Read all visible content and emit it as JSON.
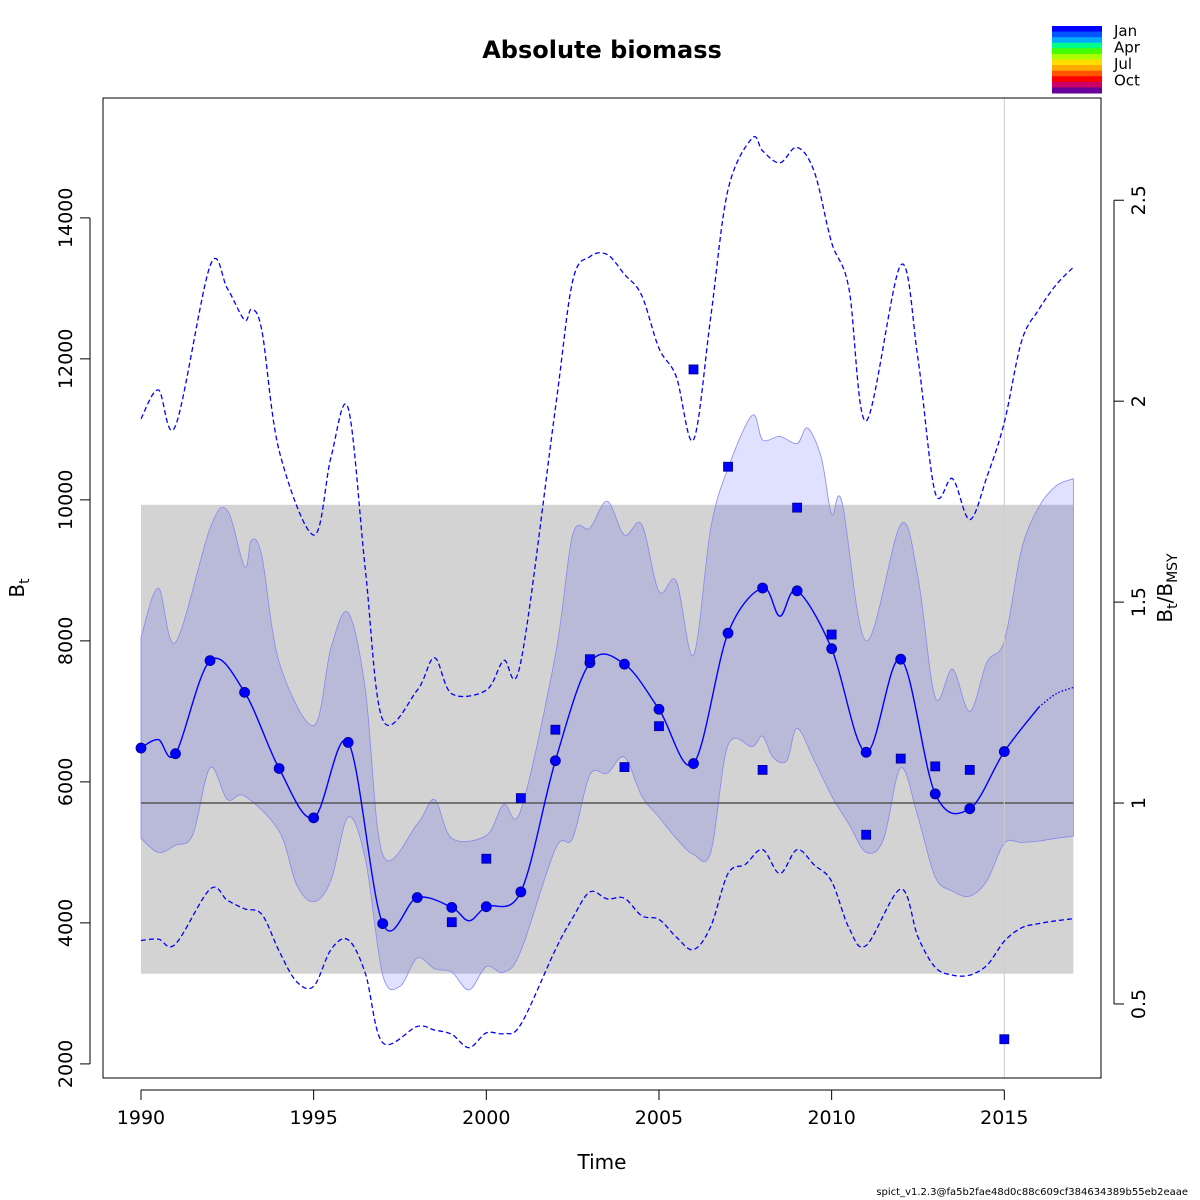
{
  "chart_data": {
    "type": "line",
    "title": "Absolute biomass",
    "xlabel": "Time",
    "ylabel_main": "B",
    "ylabel_sub": "t",
    "y2label": {
      "b": "B",
      "t": "t",
      "slash": "/B",
      "msy": "MSY"
    },
    "xlim": [
      1988.9,
      2017.8
    ],
    "ylim": [
      1800,
      15700
    ],
    "y2_scale_bmsy": 5700,
    "x_ticks": [
      1990,
      1995,
      2000,
      2005,
      2010,
      2015
    ],
    "y_ticks": [
      2000,
      4000,
      6000,
      8000,
      10000,
      12000,
      14000
    ],
    "y2_ticks": [
      0.5,
      1,
      1.5,
      2,
      2.5
    ],
    "y2_tick_labels": [
      "0.5",
      "1",
      "1.5",
      "2",
      "2.5"
    ],
    "bmsy_line": 5700,
    "bmsy_ci": [
      3280,
      9930
    ],
    "ci_range_x": [
      1990,
      2017
    ],
    "estimate": [
      [
        1990,
        6480
      ],
      [
        1990.5,
        6600
      ],
      [
        1991,
        6400
      ],
      [
        1992,
        7720
      ],
      [
        1993,
        7270
      ],
      [
        1994,
        6190
      ],
      [
        1995,
        5490
      ],
      [
        1996,
        6560
      ],
      [
        1997,
        3990
      ],
      [
        1998,
        4360
      ],
      [
        1999,
        4220
      ],
      [
        1999.5,
        4030
      ],
      [
        2000,
        4230
      ],
      [
        2001,
        4440
      ],
      [
        2002,
        6300
      ],
      [
        2003,
        7690
      ],
      [
        2004,
        7670
      ],
      [
        2005,
        7030
      ],
      [
        2006,
        6260
      ],
      [
        2007,
        8110
      ],
      [
        2008,
        8750
      ],
      [
        2008.5,
        8350
      ],
      [
        2009,
        8710
      ],
      [
        2010,
        7890
      ],
      [
        2011,
        6420
      ],
      [
        2012,
        7740
      ],
      [
        2013,
        5830
      ],
      [
        2014,
        5620
      ],
      [
        2015,
        6430
      ],
      [
        2016,
        7060
      ]
    ],
    "forecast": [
      [
        2016,
        7060
      ],
      [
        2016.5,
        7250
      ],
      [
        2017,
        7340
      ]
    ],
    "estimate_points": [
      [
        1990,
        6480
      ],
      [
        1991,
        6400
      ],
      [
        1992,
        7720
      ],
      [
        1993,
        7270
      ],
      [
        1994,
        6190
      ],
      [
        1995,
        5490
      ],
      [
        1996,
        6560
      ],
      [
        1997,
        3990
      ],
      [
        1998,
        4360
      ],
      [
        1999,
        4220
      ],
      [
        2000,
        4230
      ],
      [
        2001,
        4440
      ],
      [
        2002,
        6300
      ],
      [
        2003,
        7690
      ],
      [
        2004,
        7670
      ],
      [
        2005,
        7030
      ],
      [
        2006,
        6260
      ],
      [
        2007,
        8110
      ],
      [
        2008,
        8750
      ],
      [
        2009,
        8710
      ],
      [
        2010,
        7890
      ],
      [
        2011,
        6420
      ],
      [
        2012,
        7740
      ],
      [
        2013,
        5830
      ],
      [
        2014,
        5620
      ],
      [
        2015,
        6430
      ]
    ],
    "observations": [
      [
        2002,
        6740
      ],
      [
        2003,
        7740
      ],
      [
        2004,
        6210
      ],
      [
        2005,
        6790
      ],
      [
        2006,
        11850
      ],
      [
        2007,
        10470
      ],
      [
        2008,
        6170
      ],
      [
        2009,
        9890
      ],
      [
        2010,
        8090
      ],
      [
        2011,
        5250
      ],
      [
        2012,
        6330
      ],
      [
        2013,
        6220
      ],
      [
        2014,
        6170
      ],
      [
        2015,
        2350
      ],
      [
        1999,
        4010
      ],
      [
        2000,
        4910
      ],
      [
        2001,
        5770
      ]
    ],
    "ci_upper": [
      [
        1990,
        8050
      ],
      [
        1990.5,
        8750
      ],
      [
        1991,
        7980
      ],
      [
        1992,
        9600
      ],
      [
        1992.5,
        9850
      ],
      [
        1993,
        9050
      ],
      [
        1993.2,
        9430
      ],
      [
        1993.5,
        9200
      ],
      [
        1994,
        7700
      ],
      [
        1995,
        6800
      ],
      [
        1995.5,
        7900
      ],
      [
        1996,
        8400
      ],
      [
        1996.5,
        7300
      ],
      [
        1997,
        4970
      ],
      [
        1998,
        5400
      ],
      [
        1998.5,
        5750
      ],
      [
        1999,
        5200
      ],
      [
        2000,
        5240
      ],
      [
        2000.5,
        5680
      ],
      [
        2001,
        5600
      ],
      [
        2002,
        7800
      ],
      [
        2002.5,
        9500
      ],
      [
        2003,
        9600
      ],
      [
        2003.5,
        9980
      ],
      [
        2004,
        9500
      ],
      [
        2004.5,
        9650
      ],
      [
        2005,
        8700
      ],
      [
        2005.5,
        8850
      ],
      [
        2006,
        7800
      ],
      [
        2006.5,
        9600
      ],
      [
        2007,
        10450
      ],
      [
        2007.7,
        11200
      ],
      [
        2008,
        10850
      ],
      [
        2008.5,
        10900
      ],
      [
        2009,
        10800
      ],
      [
        2009.3,
        11020
      ],
      [
        2009.7,
        10600
      ],
      [
        2010,
        9800
      ],
      [
        2010.3,
        9970
      ],
      [
        2011,
        8000
      ],
      [
        2012,
        9650
      ],
      [
        2012.5,
        8900
      ],
      [
        2013,
        7200
      ],
      [
        2013.5,
        7600
      ],
      [
        2014,
        7000
      ],
      [
        2014.5,
        7700
      ],
      [
        2015,
        8000
      ],
      [
        2015.5,
        9300
      ],
      [
        2016,
        9900
      ],
      [
        2016.5,
        10200
      ],
      [
        2017,
        10300
      ]
    ],
    "ci_lower": [
      [
        2017,
        5230
      ],
      [
        2016.5,
        5200
      ],
      [
        2016,
        5160
      ],
      [
        2015.5,
        5140
      ],
      [
        2015,
        5130
      ],
      [
        2014.5,
        4600
      ],
      [
        2014,
        4380
      ],
      [
        2013.5,
        4450
      ],
      [
        2013,
        4650
      ],
      [
        2012.5,
        5500
      ],
      [
        2012,
        6200
      ],
      [
        2011.5,
        5180
      ],
      [
        2011,
        5000
      ],
      [
        2010.5,
        5400
      ],
      [
        2010,
        5800
      ],
      [
        2009.5,
        6300
      ],
      [
        2009,
        6760
      ],
      [
        2008.7,
        6300
      ],
      [
        2008.3,
        6350
      ],
      [
        2008,
        6650
      ],
      [
        2007.7,
        6500
      ],
      [
        2007,
        6520
      ],
      [
        2006.5,
        5000
      ],
      [
        2006,
        4970
      ],
      [
        2005.5,
        5200
      ],
      [
        2005,
        5500
      ],
      [
        2004.5,
        5800
      ],
      [
        2004,
        6350
      ],
      [
        2003.5,
        6120
      ],
      [
        2003,
        6100
      ],
      [
        2002.5,
        5200
      ],
      [
        2002,
        5050
      ],
      [
        2001,
        3600
      ],
      [
        2000.5,
        3300
      ],
      [
        2000,
        3380
      ],
      [
        1999.5,
        3050
      ],
      [
        1999,
        3300
      ],
      [
        1998.5,
        3350
      ],
      [
        1998,
        3500
      ],
      [
        1997.5,
        3100
      ],
      [
        1997,
        3260
      ],
      [
        1996.5,
        4900
      ],
      [
        1996,
        5500
      ],
      [
        1995.5,
        4600
      ],
      [
        1995,
        4300
      ],
      [
        1994.5,
        4550
      ],
      [
        1994,
        5300
      ],
      [
        1993,
        5800
      ],
      [
        1992.5,
        5750
      ],
      [
        1992,
        6200
      ],
      [
        1991.5,
        5250
      ],
      [
        1991,
        5100
      ],
      [
        1990.5,
        5000
      ],
      [
        1990,
        5200
      ]
    ],
    "pred_upper": [
      [
        1990,
        11150
      ],
      [
        1990.5,
        11560
      ],
      [
        1991,
        11050
      ],
      [
        1992,
        13320
      ],
      [
        1992.5,
        13000
      ],
      [
        1993,
        12550
      ],
      [
        1993.2,
        12700
      ],
      [
        1993.5,
        12400
      ],
      [
        1994,
        10700
      ],
      [
        1995,
        9500
      ],
      [
        1995.5,
        10600
      ],
      [
        1996,
        11300
      ],
      [
        1996.5,
        9000
      ],
      [
        1997,
        6880
      ],
      [
        1998,
        7300
      ],
      [
        1998.5,
        7760
      ],
      [
        1999,
        7250
      ],
      [
        2000,
        7300
      ],
      [
        2000.5,
        7720
      ],
      [
        2001,
        7700
      ],
      [
        2002,
        11300
      ],
      [
        2002.5,
        13100
      ],
      [
        2003,
        13450
      ],
      [
        2003.5,
        13480
      ],
      [
        2004,
        13200
      ],
      [
        2004.5,
        12900
      ],
      [
        2005,
        12150
      ],
      [
        2005.5,
        11750
      ],
      [
        2006,
        10850
      ],
      [
        2006.5,
        12600
      ],
      [
        2007,
        14400
      ],
      [
        2007.7,
        15130
      ],
      [
        2008,
        14950
      ],
      [
        2008.5,
        14780
      ],
      [
        2009,
        15000
      ],
      [
        2009.5,
        14650
      ],
      [
        2010,
        13650
      ],
      [
        2010.5,
        13000
      ],
      [
        2011,
        11120
      ],
      [
        2012,
        13330
      ],
      [
        2012.5,
        12000
      ],
      [
        2013,
        10100
      ],
      [
        2013.5,
        10300
      ],
      [
        2014,
        9720
      ],
      [
        2014.5,
        10330
      ],
      [
        2015,
        11100
      ],
      [
        2015.5,
        12250
      ],
      [
        2016,
        12700
      ],
      [
        2016.5,
        13050
      ],
      [
        2017,
        13300
      ]
    ],
    "pred_lower": [
      [
        1990,
        3750
      ],
      [
        1990.5,
        3770
      ],
      [
        1991,
        3700
      ],
      [
        1992,
        4480
      ],
      [
        1992.5,
        4320
      ],
      [
        1993,
        4200
      ],
      [
        1993.5,
        4120
      ],
      [
        1994,
        3600
      ],
      [
        1994.5,
        3170
      ],
      [
        1995,
        3100
      ],
      [
        1995.5,
        3620
      ],
      [
        1996,
        3760
      ],
      [
        1996.5,
        3280
      ],
      [
        1997,
        2300
      ],
      [
        1998,
        2530
      ],
      [
        1998.5,
        2480
      ],
      [
        1999,
        2420
      ],
      [
        1999.5,
        2230
      ],
      [
        2000,
        2440
      ],
      [
        2000.5,
        2430
      ],
      [
        2001,
        2560
      ],
      [
        2002,
        3620
      ],
      [
        2002.5,
        4070
      ],
      [
        2003,
        4440
      ],
      [
        2003.5,
        4340
      ],
      [
        2004,
        4350
      ],
      [
        2004.5,
        4100
      ],
      [
        2005,
        4050
      ],
      [
        2005.5,
        3800
      ],
      [
        2006,
        3620
      ],
      [
        2006.5,
        3950
      ],
      [
        2007,
        4700
      ],
      [
        2007.5,
        4830
      ],
      [
        2008,
        5040
      ],
      [
        2008.5,
        4700
      ],
      [
        2009,
        5040
      ],
      [
        2009.5,
        4820
      ],
      [
        2010,
        4590
      ],
      [
        2010.5,
        3930
      ],
      [
        2011,
        3680
      ],
      [
        2012,
        4480
      ],
      [
        2012.5,
        3800
      ],
      [
        2013,
        3370
      ],
      [
        2013.5,
        3260
      ],
      [
        2014,
        3260
      ],
      [
        2014.5,
        3400
      ],
      [
        2015,
        3740
      ],
      [
        2015.5,
        3930
      ],
      [
        2016,
        3990
      ],
      [
        2016.5,
        4030
      ],
      [
        2017,
        4060
      ]
    ],
    "vline_x": 2015,
    "legend": {
      "labels": [
        "Jan",
        "Apr",
        "Jul",
        "Oct"
      ],
      "colors": [
        "#0000ff",
        "#0055ff",
        "#00aaff",
        "#00ff88",
        "#44ff00",
        "#aaff00",
        "#ffdd00",
        "#ffaa00",
        "#ff5500",
        "#ff0000",
        "#cc0066",
        "#660099"
      ]
    },
    "colors": {
      "estimate": "#0000ff",
      "ci_fill": "#b8b8dc",
      "ci_fill_ext": "#e0e0ff",
      "bmsy_band": "#d3d3d3",
      "bmsy_line": "#555555",
      "vline": "#cccccc"
    }
  },
  "footer": "spict_v1.2.3@fa5b2fae48d0c88c609cf384634389b55eb2eaae"
}
